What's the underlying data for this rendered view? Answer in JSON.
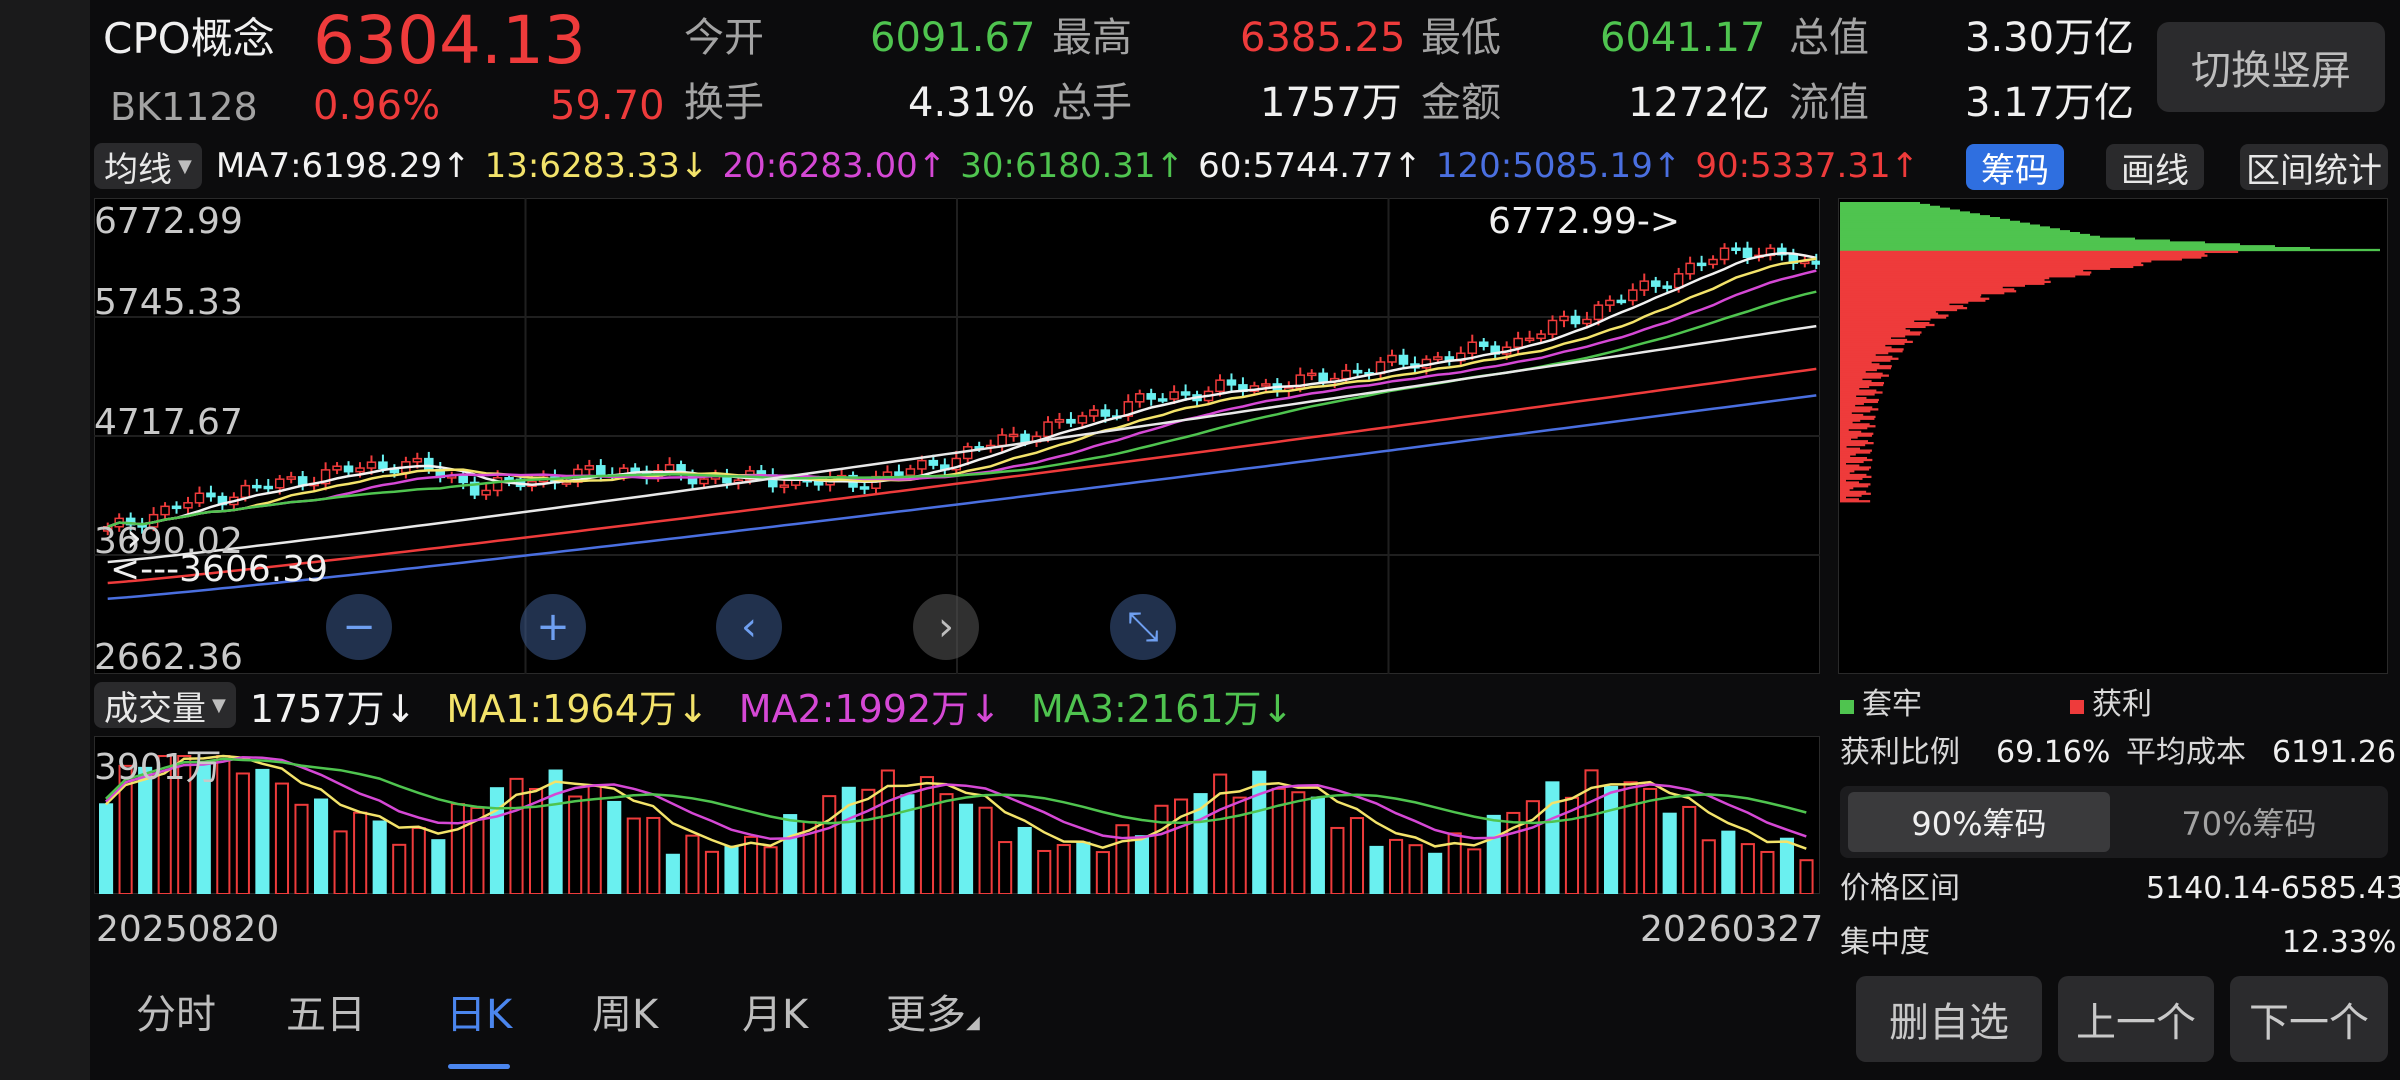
{
  "header": {
    "name": "CPO概念",
    "price": "6304.13",
    "code": "BK1128",
    "change_pct": "0.96%",
    "change": "59.70",
    "stats": [
      {
        "label": "今开",
        "value": "6091.67",
        "color": "green"
      },
      {
        "label": "最高",
        "value": "6385.25",
        "color": "red"
      },
      {
        "label": "最低",
        "value": "6041.17",
        "color": "green"
      },
      {
        "label": "总值",
        "value": "3.30万亿",
        "color": "white"
      },
      {
        "label": "换手",
        "value": "4.31%",
        "color": "white"
      },
      {
        "label": "总手",
        "value": "1757万",
        "color": "white"
      },
      {
        "label": "金额",
        "value": "1272亿",
        "color": "white"
      },
      {
        "label": "流值",
        "value": "3.17万亿",
        "color": "white"
      }
    ],
    "switch_label": "切换竖屏"
  },
  "ma_bar": {
    "selector": "均线",
    "items": [
      {
        "text": "MA7:6198.29↑",
        "color": "#f2f2f2"
      },
      {
        "text": "13:6283.33↓",
        "color": "#f3e36a"
      },
      {
        "text": "20:6283.00↑",
        "color": "#d548d5"
      },
      {
        "text": "30:6180.31↑",
        "color": "#4fc44f"
      },
      {
        "text": "60:5744.77↑",
        "color": "#f2f2f2"
      },
      {
        "text": "120:5085.19↑",
        "color": "#4a6fe0"
      },
      {
        "text": "90:5337.31↑",
        "color": "#ee3b3b"
      }
    ],
    "tools": {
      "chips": "筹码",
      "draw": "画线",
      "stats": "区间统计"
    }
  },
  "price_axis": {
    "labels": [
      "6772.99",
      "5745.33",
      "4717.67",
      "3690.02",
      "2662.36"
    ]
  },
  "annotations": {
    "high": "6772.99->",
    "low": "<---3606.39"
  },
  "volume_bar": {
    "selector": "成交量",
    "items": [
      {
        "text": "1757万↓",
        "color": "#f2f2f2"
      },
      {
        "text": "MA1:1964万↓",
        "color": "#f3e36a"
      },
      {
        "text": "MA2:1992万↓",
        "color": "#d548d5"
      },
      {
        "text": "MA3:2161万↓",
        "color": "#4fc44f"
      }
    ],
    "axis_top": "3901万"
  },
  "dates": {
    "start": "20250820",
    "end": "20260327"
  },
  "chart_data": {
    "type": "candlestick",
    "ylim": [
      2662.36,
      6772.99
    ],
    "high": 6772.99,
    "low": 3606.39,
    "x_range": [
      "20250820",
      "20260327"
    ],
    "close_approx": [
      3800,
      4050,
      4200,
      4350,
      4450,
      4200,
      4300,
      4380,
      4300,
      4280,
      4250,
      4400,
      4650,
      4850,
      5050,
      5150,
      5200,
      5350,
      5450,
      5600,
      5900,
      6200,
      6500,
      6304
    ]
  },
  "chips": {
    "legend_trapped": "套牢",
    "legend_profit": "获利",
    "profit_ratio_label": "获利比例",
    "profit_ratio": "69.16%",
    "avg_cost_label": "平均成本",
    "avg_cost": "6191.26",
    "tab_90": "90%筹码",
    "tab_70": "70%筹码",
    "range_label": "价格区间",
    "range_value": "5140.14-6585.43",
    "concentration_label": "集中度",
    "concentration_value": "12.33%"
  },
  "bottom_tabs": [
    "分时",
    "五日",
    "日K",
    "周K",
    "月K",
    "更多"
  ],
  "bottom_buttons": {
    "delete": "删自选",
    "prev": "上一个",
    "next": "下一个"
  }
}
